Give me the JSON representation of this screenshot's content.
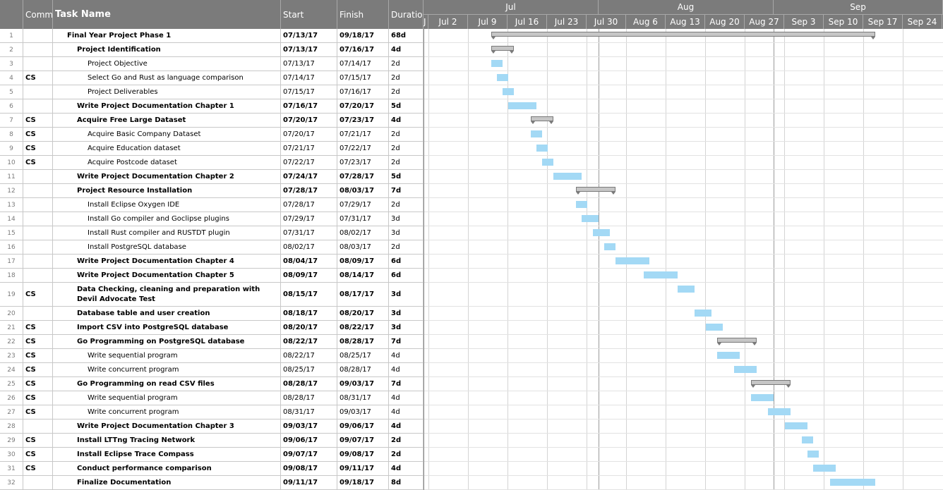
{
  "columns": {
    "comments": "Comm",
    "task_name": "Task Name",
    "start": "Start",
    "finish": "Finish",
    "duration": "Duration"
  },
  "timeline": {
    "months": [
      "Jul",
      "Aug",
      "Sep"
    ],
    "partial_week": "J",
    "weeks": [
      "Jul 2",
      "Jul 9",
      "Jul 16",
      "Jul 23",
      "Jul 30",
      "Aug 6",
      "Aug 13",
      "Aug 20",
      "Aug 27",
      "Sep 3",
      "Sep 10",
      "Sep 17",
      "Sep 24"
    ]
  },
  "tasks": [
    {
      "num": "1",
      "comments": "",
      "name": "Final Year Project Phase 1",
      "start": "07/13/17",
      "finish": "09/18/17",
      "duration": "68d",
      "summary": true,
      "level": 0
    },
    {
      "num": "2",
      "comments": "",
      "name": "Project Identification",
      "start": "07/13/17",
      "finish": "07/16/17",
      "duration": "4d",
      "summary": true,
      "level": 1
    },
    {
      "num": "3",
      "comments": "",
      "name": "Project Objective",
      "start": "07/13/17",
      "finish": "07/14/17",
      "duration": "2d",
      "summary": false,
      "level": 2
    },
    {
      "num": "4",
      "comments": "CS",
      "name": "Select Go and Rust as language comparison",
      "start": "07/14/17",
      "finish": "07/15/17",
      "duration": "2d",
      "summary": false,
      "level": 2
    },
    {
      "num": "5",
      "comments": "",
      "name": "Project Deliverables",
      "start": "07/15/17",
      "finish": "07/16/17",
      "duration": "2d",
      "summary": false,
      "level": 2
    },
    {
      "num": "6",
      "comments": "",
      "name": "Write Project Documentation Chapter 1",
      "start": "07/16/17",
      "finish": "07/20/17",
      "duration": "5d",
      "summary": false,
      "level": 1
    },
    {
      "num": "7",
      "comments": "CS",
      "name": "Acquire Free Large Dataset",
      "start": "07/20/17",
      "finish": "07/23/17",
      "duration": "4d",
      "summary": true,
      "level": 1
    },
    {
      "num": "8",
      "comments": "CS",
      "name": "Acquire Basic Company Dataset",
      "start": "07/20/17",
      "finish": "07/21/17",
      "duration": "2d",
      "summary": false,
      "level": 2
    },
    {
      "num": "9",
      "comments": "CS",
      "name": "Acquire Education dataset",
      "start": "07/21/17",
      "finish": "07/22/17",
      "duration": "2d",
      "summary": false,
      "level": 2
    },
    {
      "num": "10",
      "comments": "CS",
      "name": "Acquire Postcode dataset",
      "start": "07/22/17",
      "finish": "07/23/17",
      "duration": "2d",
      "summary": false,
      "level": 2
    },
    {
      "num": "11",
      "comments": "",
      "name": "Write Project Documentation Chapter 2",
      "start": "07/24/17",
      "finish": "07/28/17",
      "duration": "5d",
      "summary": false,
      "level": 1
    },
    {
      "num": "12",
      "comments": "",
      "name": "Project Resource Installation",
      "start": "07/28/17",
      "finish": "08/03/17",
      "duration": "7d",
      "summary": true,
      "level": 1
    },
    {
      "num": "13",
      "comments": "",
      "name": "Install Eclipse Oxygen IDE",
      "start": "07/28/17",
      "finish": "07/29/17",
      "duration": "2d",
      "summary": false,
      "level": 2
    },
    {
      "num": "14",
      "comments": "",
      "name": "Install Go compiler and Goclipse plugins",
      "start": "07/29/17",
      "finish": "07/31/17",
      "duration": "3d",
      "summary": false,
      "level": 2
    },
    {
      "num": "15",
      "comments": "",
      "name": "Install Rust compiler and RUSTDT plugin",
      "start": "07/31/17",
      "finish": "08/02/17",
      "duration": "3d",
      "summary": false,
      "level": 2
    },
    {
      "num": "16",
      "comments": "",
      "name": "Install PostgreSQL database",
      "start": "08/02/17",
      "finish": "08/03/17",
      "duration": "2d",
      "summary": false,
      "level": 2
    },
    {
      "num": "17",
      "comments": "",
      "name": "Write Project Documentation Chapter 4",
      "start": "08/04/17",
      "finish": "08/09/17",
      "duration": "6d",
      "summary": false,
      "level": 1
    },
    {
      "num": "18",
      "comments": "",
      "name": "Write Project Documentation Chapter 5",
      "start": "08/09/17",
      "finish": "08/14/17",
      "duration": "6d",
      "summary": false,
      "level": 1
    },
    {
      "num": "19",
      "comments": "CS",
      "name": "Data Checking, cleaning and preparation with Devil Advocate Test",
      "start": "08/15/17",
      "finish": "08/17/17",
      "duration": "3d",
      "summary": false,
      "level": 1
    },
    {
      "num": "20",
      "comments": "",
      "name": "Database table and user creation",
      "start": "08/18/17",
      "finish": "08/20/17",
      "duration": "3d",
      "summary": false,
      "level": 1
    },
    {
      "num": "21",
      "comments": "CS",
      "name": "Import CSV into PostgreSQL database",
      "start": "08/20/17",
      "finish": "08/22/17",
      "duration": "3d",
      "summary": false,
      "level": 1
    },
    {
      "num": "22",
      "comments": "CS",
      "name": "Go Programming on PostgreSQL database",
      "start": "08/22/17",
      "finish": "08/28/17",
      "duration": "7d",
      "summary": true,
      "level": 1
    },
    {
      "num": "23",
      "comments": "CS",
      "name": "Write sequential program",
      "start": "08/22/17",
      "finish": "08/25/17",
      "duration": "4d",
      "summary": false,
      "level": 2
    },
    {
      "num": "24",
      "comments": "CS",
      "name": "Write concurrent program",
      "start": "08/25/17",
      "finish": "08/28/17",
      "duration": "4d",
      "summary": false,
      "level": 2
    },
    {
      "num": "25",
      "comments": "CS",
      "name": "Go Programming on read CSV files",
      "start": "08/28/17",
      "finish": "09/03/17",
      "duration": "7d",
      "summary": true,
      "level": 1
    },
    {
      "num": "26",
      "comments": "CS",
      "name": "Write sequential program",
      "start": "08/28/17",
      "finish": "08/31/17",
      "duration": "4d",
      "summary": false,
      "level": 2
    },
    {
      "num": "27",
      "comments": "CS",
      "name": "Write concurrent program",
      "start": "08/31/17",
      "finish": "09/03/17",
      "duration": "4d",
      "summary": false,
      "level": 2
    },
    {
      "num": "28",
      "comments": "",
      "name": "Write Project Documentation Chapter 3",
      "start": "09/03/17",
      "finish": "09/06/17",
      "duration": "4d",
      "summary": false,
      "level": 1
    },
    {
      "num": "29",
      "comments": "CS",
      "name": "Install LTTng Tracing Network",
      "start": "09/06/17",
      "finish": "09/07/17",
      "duration": "2d",
      "summary": false,
      "level": 1
    },
    {
      "num": "30",
      "comments": "CS",
      "name": "Install Eclipse Trace Compass",
      "start": "09/07/17",
      "finish": "09/08/17",
      "duration": "2d",
      "summary": false,
      "level": 1
    },
    {
      "num": "31",
      "comments": "CS",
      "name": "Conduct performance comparison",
      "start": "09/08/17",
      "finish": "09/11/17",
      "duration": "4d",
      "summary": false,
      "level": 1
    },
    {
      "num": "32",
      "comments": "",
      "name": "Finalize Documentation",
      "start": "09/11/17",
      "finish": "09/18/17",
      "duration": "8d",
      "summary": false,
      "level": 1
    }
  ],
  "colors": {
    "header": "#7b7b7b",
    "task_bar": "#a3d9f5",
    "summary_bar": "#c6c6c6"
  }
}
